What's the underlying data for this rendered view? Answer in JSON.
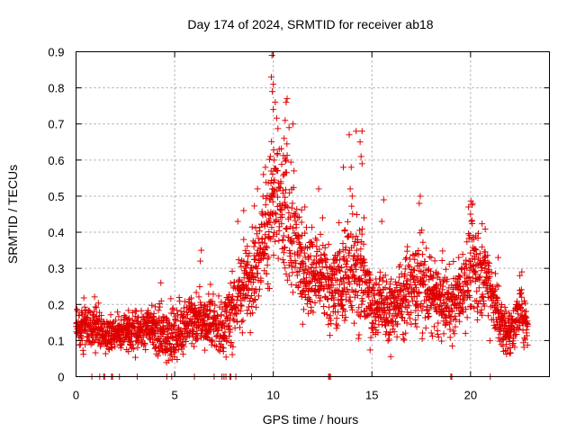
{
  "chart_data": {
    "type": "scatter",
    "title": "Day 174 of 2024, SRMTID for receiver ab18",
    "xlabel": "GPS time / hours",
    "ylabel": "SRMTID / TECUs",
    "xlim": [
      0,
      24
    ],
    "ylim": [
      0,
      0.9
    ],
    "xticks": [
      0,
      5,
      10,
      15,
      20
    ],
    "yticks": [
      0,
      0.1,
      0.2,
      0.3,
      0.4,
      0.5,
      0.6,
      0.7,
      0.8,
      0.9
    ],
    "grid": true,
    "marker": "plus",
    "color": "#e00000",
    "series": [
      {
        "name": "SRMTID",
        "trend": [
          [
            0.0,
            0.13,
            0.04
          ],
          [
            0.5,
            0.14,
            0.05
          ],
          [
            1.0,
            0.14,
            0.05
          ],
          [
            1.5,
            0.12,
            0.04
          ],
          [
            2.0,
            0.12,
            0.03
          ],
          [
            2.5,
            0.12,
            0.04
          ],
          [
            3.0,
            0.13,
            0.04
          ],
          [
            3.5,
            0.14,
            0.04
          ],
          [
            4.0,
            0.13,
            0.05
          ],
          [
            4.5,
            0.12,
            0.05
          ],
          [
            5.0,
            0.11,
            0.05
          ],
          [
            5.5,
            0.15,
            0.05
          ],
          [
            6.0,
            0.16,
            0.05
          ],
          [
            6.5,
            0.16,
            0.05
          ],
          [
            7.0,
            0.15,
            0.06
          ],
          [
            7.5,
            0.13,
            0.05
          ],
          [
            8.0,
            0.2,
            0.07
          ],
          [
            8.5,
            0.25,
            0.07
          ],
          [
            9.0,
            0.3,
            0.08
          ],
          [
            9.5,
            0.38,
            0.09
          ],
          [
            10.0,
            0.48,
            0.13
          ],
          [
            10.5,
            0.45,
            0.13
          ],
          [
            11.0,
            0.38,
            0.11
          ],
          [
            11.5,
            0.3,
            0.09
          ],
          [
            12.0,
            0.28,
            0.08
          ],
          [
            12.5,
            0.27,
            0.08
          ],
          [
            13.0,
            0.25,
            0.08
          ],
          [
            13.5,
            0.27,
            0.09
          ],
          [
            14.0,
            0.32,
            0.11
          ],
          [
            14.5,
            0.28,
            0.1
          ],
          [
            15.0,
            0.2,
            0.07
          ],
          [
            15.5,
            0.2,
            0.07
          ],
          [
            16.0,
            0.19,
            0.07
          ],
          [
            16.5,
            0.21,
            0.07
          ],
          [
            17.0,
            0.25,
            0.08
          ],
          [
            17.5,
            0.27,
            0.09
          ],
          [
            18.0,
            0.22,
            0.07
          ],
          [
            18.5,
            0.21,
            0.07
          ],
          [
            19.0,
            0.2,
            0.07
          ],
          [
            19.5,
            0.23,
            0.08
          ],
          [
            20.0,
            0.3,
            0.1
          ],
          [
            20.5,
            0.3,
            0.09
          ],
          [
            21.0,
            0.25,
            0.08
          ],
          [
            21.5,
            0.15,
            0.05
          ],
          [
            22.0,
            0.12,
            0.04
          ],
          [
            22.5,
            0.18,
            0.05
          ],
          [
            22.9,
            0.14,
            0.04
          ]
        ],
        "spikes": [
          [
            9.93,
            0.89
          ],
          [
            9.9,
            0.83
          ],
          [
            10.0,
            0.81
          ],
          [
            9.95,
            0.79
          ],
          [
            10.1,
            0.76
          ],
          [
            10.0,
            0.74
          ],
          [
            10.7,
            0.77
          ],
          [
            10.65,
            0.76
          ],
          [
            10.6,
            0.71
          ],
          [
            11.0,
            0.7
          ],
          [
            10.8,
            0.69
          ],
          [
            10.55,
            0.66
          ],
          [
            10.3,
            0.63
          ],
          [
            9.85,
            0.61
          ],
          [
            10.05,
            0.6
          ],
          [
            10.65,
            0.6
          ],
          [
            9.6,
            0.58
          ],
          [
            11.05,
            0.57
          ],
          [
            9.5,
            0.56
          ],
          [
            9.2,
            0.52
          ],
          [
            9.95,
            0.52
          ],
          [
            14.2,
            0.68
          ],
          [
            14.5,
            0.68
          ],
          [
            13.85,
            0.67
          ],
          [
            14.4,
            0.65
          ],
          [
            14.45,
            0.61
          ],
          [
            14.5,
            0.59
          ],
          [
            13.55,
            0.58
          ],
          [
            13.95,
            0.58
          ],
          [
            13.9,
            0.52
          ],
          [
            14.0,
            0.5
          ],
          [
            15.6,
            0.49
          ],
          [
            17.45,
            0.5
          ],
          [
            17.4,
            0.48
          ],
          [
            19.9,
            0.47
          ],
          [
            20.1,
            0.48
          ],
          [
            20.0,
            0.45
          ],
          [
            20.05,
            0.43
          ],
          [
            11.6,
            0.47
          ],
          [
            12.3,
            0.52
          ],
          [
            12.5,
            0.44
          ],
          [
            6.35,
            0.35
          ],
          [
            6.3,
            0.32
          ],
          [
            4.3,
            0.26
          ],
          [
            8.2,
            0.43
          ],
          [
            8.5,
            0.38
          ],
          [
            8.5,
            0.46
          ],
          [
            14.6,
            0.44
          ],
          [
            15.5,
            0.43
          ],
          [
            22.6,
            0.29
          ],
          [
            22.5,
            0.28
          ],
          [
            18.0,
            0.33
          ],
          [
            19.4,
            0.33
          ],
          [
            21.4,
            0.33
          ],
          [
            16.8,
            0.36
          ]
        ],
        "zeros": [
          0.8,
          1.2,
          1.4,
          1.45,
          1.8,
          1.85,
          2.2,
          3.1,
          4.6,
          4.85,
          6.0,
          7.0,
          7.4,
          7.5,
          7.6,
          7.8,
          7.85,
          8.1,
          8.9,
          12.8,
          12.85,
          12.9,
          19.0,
          19.05,
          21.0
        ]
      }
    ]
  }
}
